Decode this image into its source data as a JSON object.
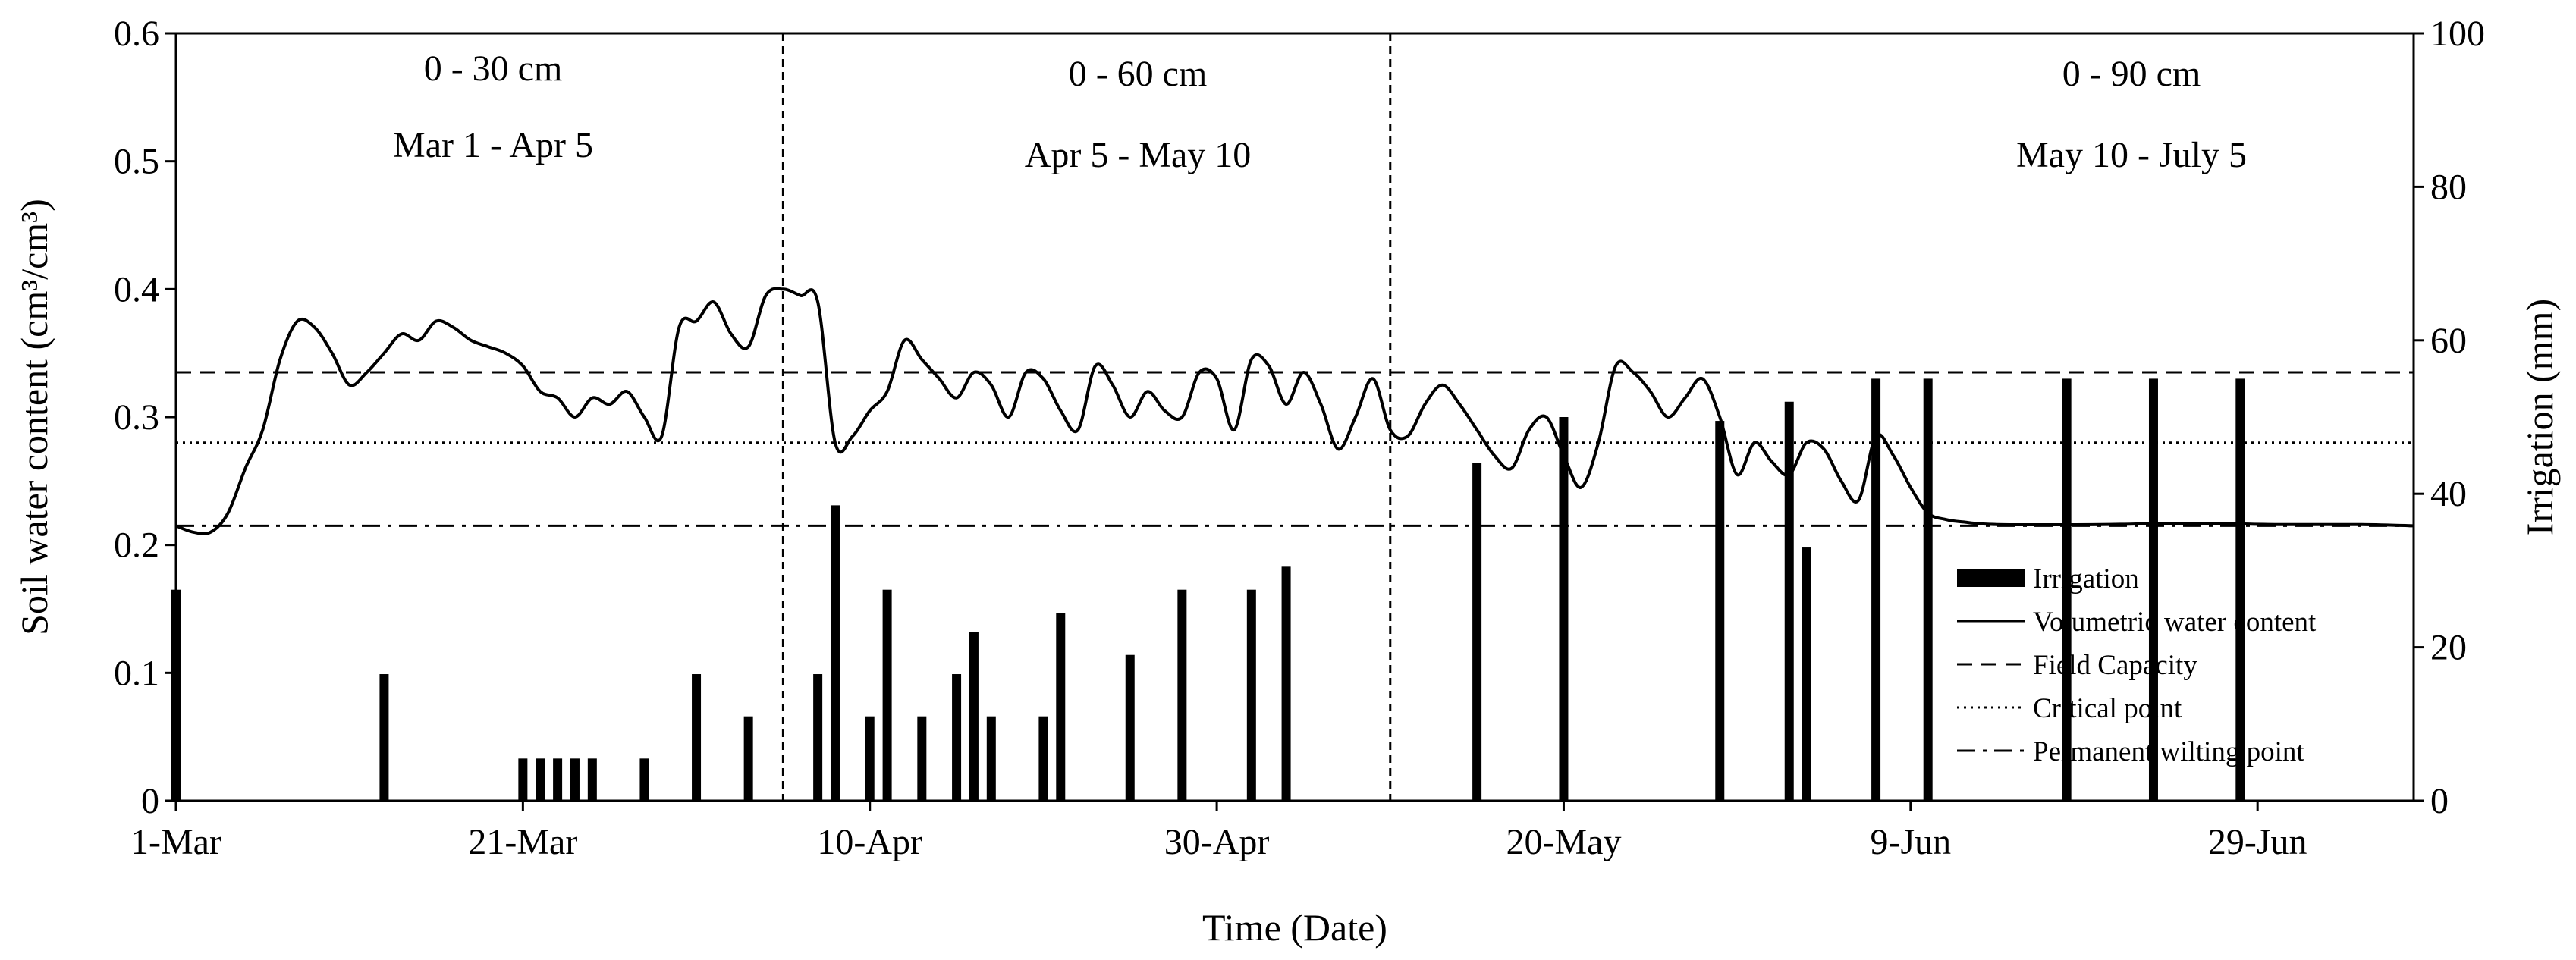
{
  "chart_data": {
    "type": "line+bar",
    "xlabel": "Time (Date)",
    "ylabel_left": "Soil water content (cm³/cm³)",
    "ylabel_right": "Irrigation (mm)",
    "x_date_range": [
      "2013-03-01",
      "2013-07-08"
    ],
    "x_ticks": [
      {
        "date": "2013-03-01",
        "label": "1-Mar"
      },
      {
        "date": "2013-03-21",
        "label": "21-Mar"
      },
      {
        "date": "2013-04-10",
        "label": "10-Apr"
      },
      {
        "date": "2013-04-30",
        "label": "30-Apr"
      },
      {
        "date": "2013-05-20",
        "label": "20-May"
      },
      {
        "date": "2013-06-09",
        "label": "9-Jun"
      },
      {
        "date": "2013-06-29",
        "label": "29-Jun"
      }
    ],
    "y_left": {
      "min": 0,
      "max": 0.6,
      "ticks": [
        "0",
        "0.1",
        "0.2",
        "0.3",
        "0.4",
        "0.5",
        "0.6"
      ]
    },
    "y_right": {
      "min": 0,
      "max": 100,
      "ticks": [
        "0",
        "20",
        "40",
        "60",
        "80",
        "100"
      ]
    },
    "periods": [
      {
        "depth": "0 - 30 cm",
        "dates": "Mar 1 - Apr 5",
        "start": "2013-03-01",
        "end": "2013-04-05"
      },
      {
        "depth": "0 - 60 cm",
        "dates": "Apr 5 - May 10",
        "start": "2013-04-05",
        "end": "2013-05-10"
      },
      {
        "depth": "0 - 90 cm",
        "dates": "May 10 - July 5",
        "start": "2013-05-10",
        "end": "2013-07-05"
      }
    ],
    "period_dividers": [
      "2013-04-05",
      "2013-05-10"
    ],
    "reference_lines": [
      {
        "name": "Field Capacity",
        "value": 0.335,
        "style": "dashed"
      },
      {
        "name": "Critical point",
        "value": 0.28,
        "style": "dotted"
      },
      {
        "name": "Permanent wilting point",
        "value": 0.215,
        "style": "dashdot"
      }
    ],
    "series": [
      {
        "name": "Volumetric water content",
        "style": "line",
        "axis": "left",
        "points": [
          [
            "2013-03-01",
            0.215
          ],
          [
            "2013-03-02",
            0.21
          ],
          [
            "2013-03-03",
            0.21
          ],
          [
            "2013-03-04",
            0.225
          ],
          [
            "2013-03-05",
            0.26
          ],
          [
            "2013-03-06",
            0.29
          ],
          [
            "2013-03-07",
            0.345
          ],
          [
            "2013-03-08",
            0.375
          ],
          [
            "2013-03-09",
            0.37
          ],
          [
            "2013-03-10",
            0.35
          ],
          [
            "2013-03-11",
            0.325
          ],
          [
            "2013-03-12",
            0.335
          ],
          [
            "2013-03-13",
            0.35
          ],
          [
            "2013-03-14",
            0.365
          ],
          [
            "2013-03-15",
            0.36
          ],
          [
            "2013-03-16",
            0.375
          ],
          [
            "2013-03-17",
            0.37
          ],
          [
            "2013-03-18",
            0.36
          ],
          [
            "2013-03-19",
            0.355
          ],
          [
            "2013-03-20",
            0.35
          ],
          [
            "2013-03-21",
            0.34
          ],
          [
            "2013-03-22",
            0.32
          ],
          [
            "2013-03-23",
            0.315
          ],
          [
            "2013-03-24",
            0.3
          ],
          [
            "2013-03-25",
            0.315
          ],
          [
            "2013-03-26",
            0.31
          ],
          [
            "2013-03-27",
            0.32
          ],
          [
            "2013-03-28",
            0.3
          ],
          [
            "2013-03-29",
            0.285
          ],
          [
            "2013-03-30",
            0.37
          ],
          [
            "2013-03-31",
            0.375
          ],
          [
            "2013-04-01",
            0.39
          ],
          [
            "2013-04-02",
            0.365
          ],
          [
            "2013-04-03",
            0.355
          ],
          [
            "2013-04-04",
            0.395
          ],
          [
            "2013-04-05",
            0.4
          ],
          [
            "2013-04-06",
            0.395
          ],
          [
            "2013-04-07",
            0.39
          ],
          [
            "2013-04-08",
            0.28
          ],
          [
            "2013-04-09",
            0.285
          ],
          [
            "2013-04-10",
            0.305
          ],
          [
            "2013-04-11",
            0.32
          ],
          [
            "2013-04-12",
            0.36
          ],
          [
            "2013-04-13",
            0.345
          ],
          [
            "2013-04-14",
            0.33
          ],
          [
            "2013-04-15",
            0.315
          ],
          [
            "2013-04-16",
            0.335
          ],
          [
            "2013-04-17",
            0.325
          ],
          [
            "2013-04-18",
            0.3
          ],
          [
            "2013-04-19",
            0.335
          ],
          [
            "2013-04-20",
            0.33
          ],
          [
            "2013-04-21",
            0.305
          ],
          [
            "2013-04-22",
            0.29
          ],
          [
            "2013-04-23",
            0.34
          ],
          [
            "2013-04-24",
            0.325
          ],
          [
            "2013-04-25",
            0.3
          ],
          [
            "2013-04-26",
            0.32
          ],
          [
            "2013-04-27",
            0.305
          ],
          [
            "2013-04-28",
            0.3
          ],
          [
            "2013-04-29",
            0.335
          ],
          [
            "2013-04-30",
            0.33
          ],
          [
            "2013-05-01",
            0.29
          ],
          [
            "2013-05-02",
            0.345
          ],
          [
            "2013-05-03",
            0.34
          ],
          [
            "2013-05-04",
            0.31
          ],
          [
            "2013-05-05",
            0.335
          ],
          [
            "2013-05-06",
            0.31
          ],
          [
            "2013-05-07",
            0.275
          ],
          [
            "2013-05-08",
            0.3
          ],
          [
            "2013-05-09",
            0.33
          ],
          [
            "2013-05-10",
            0.29
          ],
          [
            "2013-05-11",
            0.285
          ],
          [
            "2013-05-12",
            0.31
          ],
          [
            "2013-05-13",
            0.325
          ],
          [
            "2013-05-14",
            0.31
          ],
          [
            "2013-05-15",
            0.29
          ],
          [
            "2013-05-16",
            0.27
          ],
          [
            "2013-05-17",
            0.26
          ],
          [
            "2013-05-18",
            0.29
          ],
          [
            "2013-05-19",
            0.3
          ],
          [
            "2013-05-20",
            0.27
          ],
          [
            "2013-05-21",
            0.245
          ],
          [
            "2013-05-22",
            0.28
          ],
          [
            "2013-05-23",
            0.34
          ],
          [
            "2013-05-24",
            0.335
          ],
          [
            "2013-05-25",
            0.32
          ],
          [
            "2013-05-26",
            0.3
          ],
          [
            "2013-05-27",
            0.315
          ],
          [
            "2013-05-28",
            0.33
          ],
          [
            "2013-05-29",
            0.3
          ],
          [
            "2013-05-30",
            0.255
          ],
          [
            "2013-05-31",
            0.28
          ],
          [
            "2013-06-01",
            0.265
          ],
          [
            "2013-06-02",
            0.255
          ],
          [
            "2013-06-03",
            0.28
          ],
          [
            "2013-06-04",
            0.275
          ],
          [
            "2013-06-05",
            0.25
          ],
          [
            "2013-06-06",
            0.235
          ],
          [
            "2013-06-07",
            0.285
          ],
          [
            "2013-06-08",
            0.27
          ],
          [
            "2013-06-09",
            0.245
          ],
          [
            "2013-06-10",
            0.225
          ],
          [
            "2013-06-11",
            0.22
          ],
          [
            "2013-06-12",
            0.218
          ],
          [
            "2013-06-14",
            0.216
          ],
          [
            "2013-06-20",
            0.216
          ],
          [
            "2013-06-25",
            0.217
          ],
          [
            "2013-06-30",
            0.216
          ],
          [
            "2013-07-05",
            0.216
          ],
          [
            "2013-07-08",
            0.215
          ]
        ]
      },
      {
        "name": "Irrigation",
        "style": "bar",
        "axis": "right",
        "unit": "mm",
        "points": [
          [
            "2013-03-01",
            27.5
          ],
          [
            "2013-03-13",
            16.5
          ],
          [
            "2013-03-21",
            5.5
          ],
          [
            "2013-03-22",
            5.5
          ],
          [
            "2013-03-23",
            5.5
          ],
          [
            "2013-03-24",
            5.5
          ],
          [
            "2013-03-25",
            5.5
          ],
          [
            "2013-03-28",
            5.5
          ],
          [
            "2013-03-31",
            16.5
          ],
          [
            "2013-04-03",
            11
          ],
          [
            "2013-04-07",
            16.5
          ],
          [
            "2013-04-10",
            11
          ],
          [
            "2013-04-13",
            11
          ],
          [
            "2013-04-15",
            16.5
          ],
          [
            "2013-04-17",
            11
          ],
          [
            "2013-04-20",
            11
          ],
          [
            "2013-04-08",
            38.5
          ],
          [
            "2013-04-11",
            27.5
          ],
          [
            "2013-04-16",
            22
          ],
          [
            "2013-04-21",
            24.5
          ],
          [
            "2013-04-25",
            19
          ],
          [
            "2013-04-28",
            27.5
          ],
          [
            "2013-05-02",
            27.5
          ],
          [
            "2013-05-04",
            30.5
          ],
          [
            "2013-05-15",
            44
          ],
          [
            "2013-05-20",
            50
          ],
          [
            "2013-05-29",
            49.5
          ],
          [
            "2013-06-02",
            52
          ],
          [
            "2013-06-03",
            33
          ],
          [
            "2013-06-07",
            55
          ],
          [
            "2013-06-10",
            55
          ],
          [
            "2013-06-18",
            55
          ],
          [
            "2013-06-23",
            55
          ],
          [
            "2013-06-28",
            55
          ]
        ]
      }
    ],
    "legend": {
      "placement": "lower-right",
      "entries": [
        {
          "label": "Irrigation",
          "symbol": "bar"
        },
        {
          "label": "Volumetric water content",
          "symbol": "solid"
        },
        {
          "label": "Field Capacity",
          "symbol": "dashed"
        },
        {
          "label": "Critical point",
          "symbol": "dotted"
        },
        {
          "label": "Permanent wilting point",
          "symbol": "dashdot"
        }
      ]
    }
  }
}
